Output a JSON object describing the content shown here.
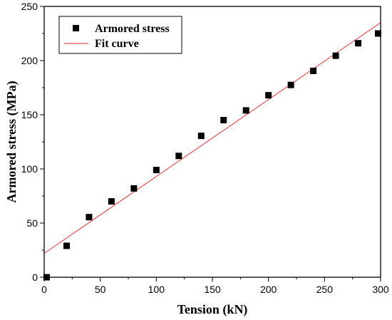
{
  "chart_data": {
    "type": "scatter",
    "title": "",
    "xlabel": "Tension (kN)",
    "ylabel": "Armored stress (MPa)",
    "xlim": [
      0,
      300
    ],
    "ylim": [
      0,
      250
    ],
    "xticks": [
      0,
      50,
      100,
      150,
      200,
      250,
      300
    ],
    "yticks": [
      0,
      50,
      100,
      150,
      200,
      250
    ],
    "grid": false,
    "legend_placement": "top-left",
    "series": [
      {
        "name": "Armored stress",
        "kind": "scatter",
        "marker": "square",
        "color": "#000000",
        "x": [
          0,
          20,
          40,
          60,
          80,
          100,
          120,
          140,
          160,
          180,
          200,
          220,
          240,
          260,
          280,
          300
        ],
        "y": [
          0,
          29,
          55.5,
          70,
          82,
          99,
          112,
          130.5,
          145,
          154,
          168,
          177.5,
          190.5,
          204.5,
          216,
          225
        ]
      },
      {
        "name": "Fit curve",
        "kind": "line",
        "color": "#e8504f",
        "x": [
          0,
          300
        ],
        "y": [
          22,
          235
        ]
      }
    ]
  }
}
